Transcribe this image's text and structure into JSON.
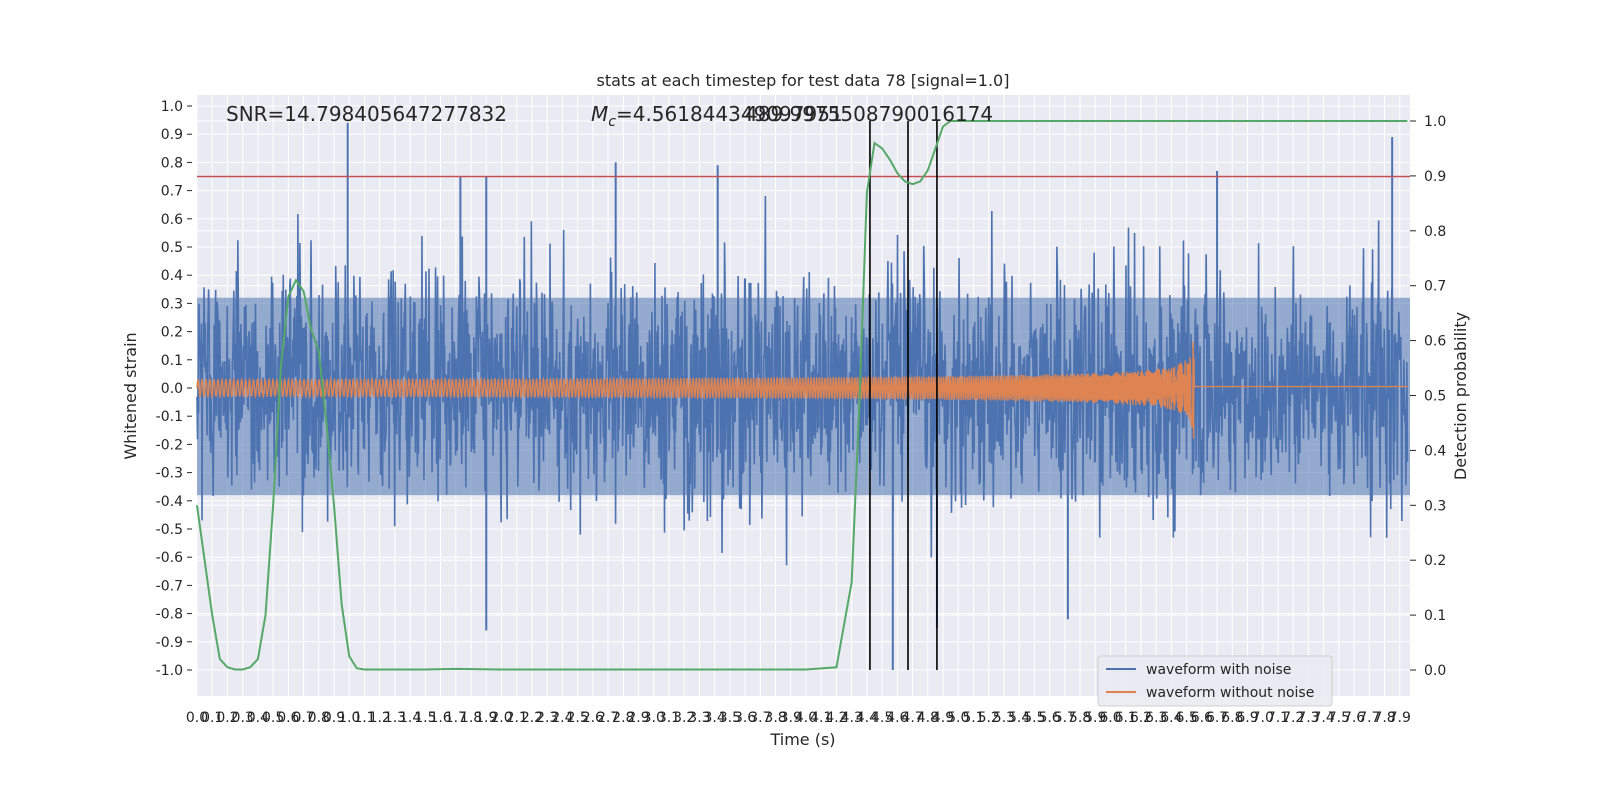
{
  "chart_data": {
    "type": "line",
    "title": "stats at each timestep for test data 78 [signal=1.0]",
    "xlabel": "Time (s)",
    "ylabel": "Whitened strain",
    "y2label": "Detection probability",
    "xlim": [
      0.0,
      7.95
    ],
    "ylim": [
      -1.1,
      1.05
    ],
    "y2lim": [
      -0.05,
      1.03
    ],
    "x_ticks": [
      0.0,
      0.1,
      0.2,
      0.3,
      0.4,
      0.5,
      0.6,
      0.7,
      0.8,
      0.9,
      1.0,
      1.1,
      1.2,
      1.3,
      1.4,
      1.5,
      1.6,
      1.7,
      1.8,
      1.9,
      2.0,
      2.1,
      2.2,
      2.3,
      2.4,
      2.5,
      2.6,
      2.7,
      2.8,
      2.9,
      3.0,
      3.1,
      3.2,
      3.3,
      3.4,
      3.5,
      3.6,
      3.7,
      3.8,
      3.9,
      4.0,
      4.1,
      4.2,
      4.3,
      4.4,
      4.5,
      4.6,
      4.7,
      4.8,
      4.9,
      5.0,
      5.1,
      5.2,
      5.3,
      5.4,
      5.5,
      5.6,
      5.7,
      5.8,
      5.9,
      6.0,
      6.1,
      6.2,
      6.3,
      6.4,
      6.5,
      6.6,
      6.7,
      6.8,
      6.9,
      7.0,
      7.1,
      7.2,
      7.3,
      7.4,
      7.5,
      7.6,
      7.7,
      7.8,
      7.9
    ],
    "y_ticks": [
      "1.0",
      "0.9",
      "0.8",
      "0.7",
      "0.6",
      "0.5",
      "0.4",
      "0.3",
      "0.2",
      "0.1",
      "0.0",
      "-0.1",
      "-0.2",
      "-0.3",
      "-0.4",
      "-0.5",
      "-0.6",
      "-0.7",
      "-0.8",
      "-0.9",
      "-1.0"
    ],
    "y_ticks_values": [
      1.0,
      0.9,
      0.8,
      0.7,
      0.6,
      0.5,
      0.4,
      0.3,
      0.2,
      0.1,
      0.0,
      -0.1,
      -0.2,
      -0.3,
      -0.4,
      -0.5,
      -0.6,
      -0.7,
      -0.8,
      -0.9,
      -1.0
    ],
    "y2_ticks": [
      "1.0",
      "0.9",
      "0.8",
      "0.7",
      "0.6",
      "0.5",
      "0.4",
      "0.3",
      "0.2",
      "0.1",
      "0.0"
    ],
    "y2_ticks_values": [
      1.0,
      0.9,
      0.8,
      0.7,
      0.6,
      0.5,
      0.4,
      0.3,
      0.2,
      0.1,
      0.0
    ],
    "annotations": {
      "snr": "SNR=14.798405647277832",
      "mc_prefix": "M",
      "mc_sub": "c",
      "mc_value": "=4.561844349097951",
      "mc_overlap": "489.9975508790016174"
    },
    "series": [
      {
        "name": "waveform with noise",
        "color": "#4c72b0",
        "axis": "left",
        "noise_std": 0.2,
        "max": 0.94,
        "min": -1.0,
        "spikes": [
          {
            "x": 0.99,
            "y": 0.94
          },
          {
            "x": 7.85,
            "y": 0.89
          },
          {
            "x": 2.75,
            "y": 0.8
          },
          {
            "x": 3.42,
            "y": 0.79
          },
          {
            "x": 1.73,
            "y": 0.75
          },
          {
            "x": 1.9,
            "y": 0.75
          },
          {
            "x": 6.7,
            "y": 0.77
          },
          {
            "x": 4.57,
            "y": -1.0
          },
          {
            "x": 4.86,
            "y": -0.85
          },
          {
            "x": 1.9,
            "y": -0.86
          },
          {
            "x": 5.72,
            "y": -0.82
          }
        ]
      },
      {
        "name": "waveform without noise",
        "color": "#dd8452",
        "axis": "left",
        "peak_time": 6.55,
        "initial_amplitude": 0.03,
        "peak_amplitude": 0.27,
        "post_merger_value": 0.005
      },
      {
        "name": "detection probability",
        "color": "#55a868",
        "axis": "right",
        "x": [
          0.0,
          0.05,
          0.1,
          0.15,
          0.2,
          0.25,
          0.3,
          0.35,
          0.4,
          0.45,
          0.5,
          0.55,
          0.6,
          0.65,
          0.7,
          0.75,
          0.8,
          0.85,
          0.9,
          0.95,
          1.0,
          1.05,
          1.1,
          1.15,
          1.2,
          1.5,
          1.7,
          2.0,
          3.0,
          4.0,
          4.2,
          4.3,
          4.35,
          4.4,
          4.45,
          4.5,
          4.55,
          4.6,
          4.65,
          4.7,
          4.75,
          4.8,
          4.85,
          4.9,
          4.95,
          5.0,
          5.05,
          5.1,
          5.2,
          5.5,
          6.0,
          7.0,
          7.95
        ],
        "y": [
          0.3,
          0.2,
          0.1,
          0.02,
          0.005,
          0.001,
          0.001,
          0.005,
          0.02,
          0.1,
          0.3,
          0.55,
          0.68,
          0.71,
          0.69,
          0.62,
          0.58,
          0.45,
          0.3,
          0.12,
          0.025,
          0.003,
          0.001,
          0.001,
          0.001,
          0.001,
          0.002,
          0.001,
          0.001,
          0.001,
          0.005,
          0.16,
          0.48,
          0.87,
          0.96,
          0.95,
          0.93,
          0.905,
          0.89,
          0.885,
          0.89,
          0.91,
          0.95,
          0.99,
          1.0,
          1.0,
          1.0,
          1.0,
          1.0,
          1.0,
          1.0,
          1.0,
          1.0
        ]
      }
    ],
    "threshold_line": {
      "y": 0.75,
      "color": "#c44e52",
      "axis": "left"
    },
    "vertical_lines": [
      4.42,
      4.67,
      4.86
    ],
    "legend": {
      "placement": "lower-right",
      "entries": [
        "waveform with noise",
        "waveform without noise"
      ]
    },
    "grid": true
  }
}
